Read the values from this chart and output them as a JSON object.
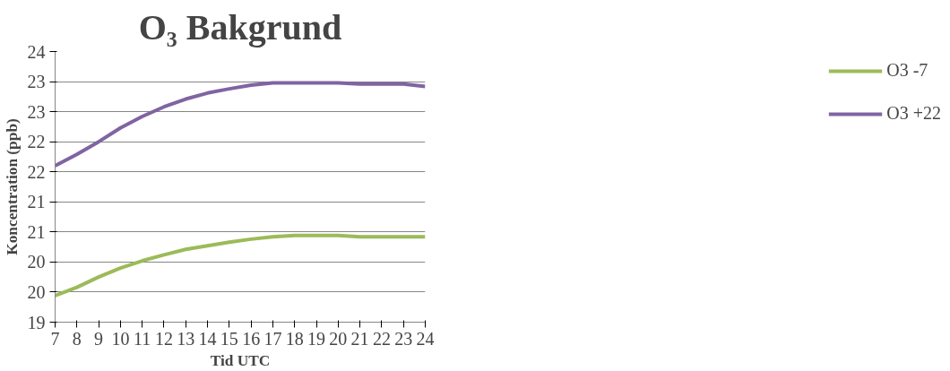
{
  "chart_data": {
    "type": "line",
    "title": "O₃ Bakgrund",
    "xlabel": "Tid UTC",
    "ylabel": "Koncentration (ppb)",
    "x": [
      7,
      8,
      9,
      10,
      11,
      12,
      13,
      14,
      15,
      16,
      17,
      18,
      19,
      20,
      21,
      22,
      23,
      24
    ],
    "xlim": [
      7,
      24
    ],
    "xticks": [
      7,
      8,
      9,
      10,
      11,
      12,
      13,
      14,
      15,
      16,
      17,
      18,
      19,
      20,
      21,
      22,
      23,
      24
    ],
    "ylim": [
      19.4,
      23.9
    ],
    "yticks": [
      {
        "value": 19.4,
        "label": "19"
      },
      {
        "value": 19.9,
        "label": "20"
      },
      {
        "value": 20.4,
        "label": "20"
      },
      {
        "value": 20.9,
        "label": "21"
      },
      {
        "value": 21.4,
        "label": "21"
      },
      {
        "value": 21.9,
        "label": "22"
      },
      {
        "value": 22.4,
        "label": "22"
      },
      {
        "value": 22.9,
        "label": "23"
      },
      {
        "value": 23.4,
        "label": "23"
      },
      {
        "value": 23.9,
        "label": "24"
      }
    ],
    "grid": "y",
    "legend": "right",
    "marker": "none",
    "line_style": "solid",
    "series": [
      {
        "name": "O3 -7",
        "color": "#9bbb59",
        "values": [
          19.84,
          19.98,
          20.15,
          20.3,
          20.42,
          20.52,
          20.61,
          20.67,
          20.73,
          20.78,
          20.82,
          20.84,
          20.84,
          20.84,
          20.82,
          20.82,
          20.82,
          20.82
        ]
      },
      {
        "name": "O3 +22",
        "color": "#8064a2",
        "values": [
          22.0,
          22.19,
          22.4,
          22.63,
          22.82,
          22.98,
          23.11,
          23.21,
          23.28,
          23.34,
          23.38,
          23.38,
          23.38,
          23.38,
          23.36,
          23.36,
          23.36,
          23.32
        ]
      }
    ]
  }
}
